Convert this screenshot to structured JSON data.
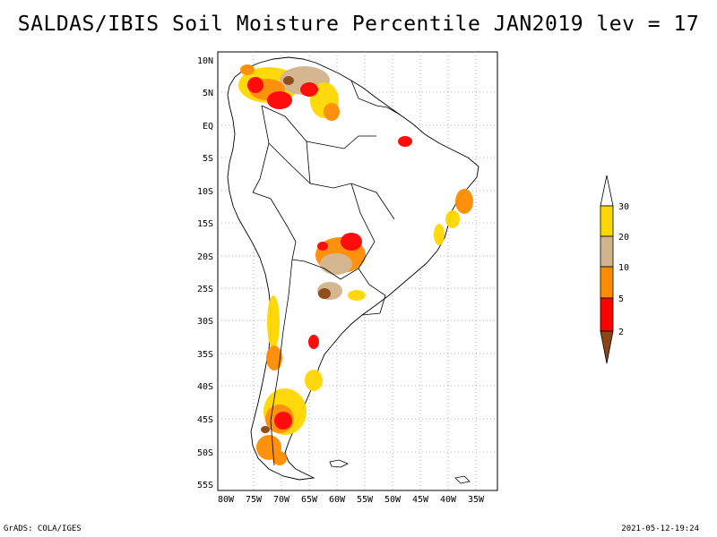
{
  "title": "SALDAS/IBIS Soil Moisture Percentile JAN2019 lev = 17",
  "footer": {
    "left": "GrADS: COLA/IGES",
    "right": "2021-05-12-19:24"
  },
  "lat_ticks": [
    "10N",
    "5N",
    "EQ",
    "5S",
    "10S",
    "15S",
    "20S",
    "25S",
    "30S",
    "35S",
    "40S",
    "45S",
    "50S",
    "55S"
  ],
  "lon_ticks": [
    "80W",
    "75W",
    "70W",
    "65W",
    "60W",
    "55W",
    "50W",
    "45W",
    "40W",
    "35W"
  ],
  "colorbar": {
    "labels": [
      "30",
      "20",
      "10",
      "5",
      "2"
    ],
    "colors": {
      "above30": "#ffffff",
      "c20_30": "#ffd700",
      "c10_20": "#d2b48c",
      "c5_10": "#ff8c00",
      "c2_5": "#ff0000",
      "below2": "#8b4513"
    }
  },
  "map": {
    "region": "South America",
    "land_color": "#ffffff",
    "border_color": "#000000",
    "grid_color": "#9a9a9a"
  }
}
